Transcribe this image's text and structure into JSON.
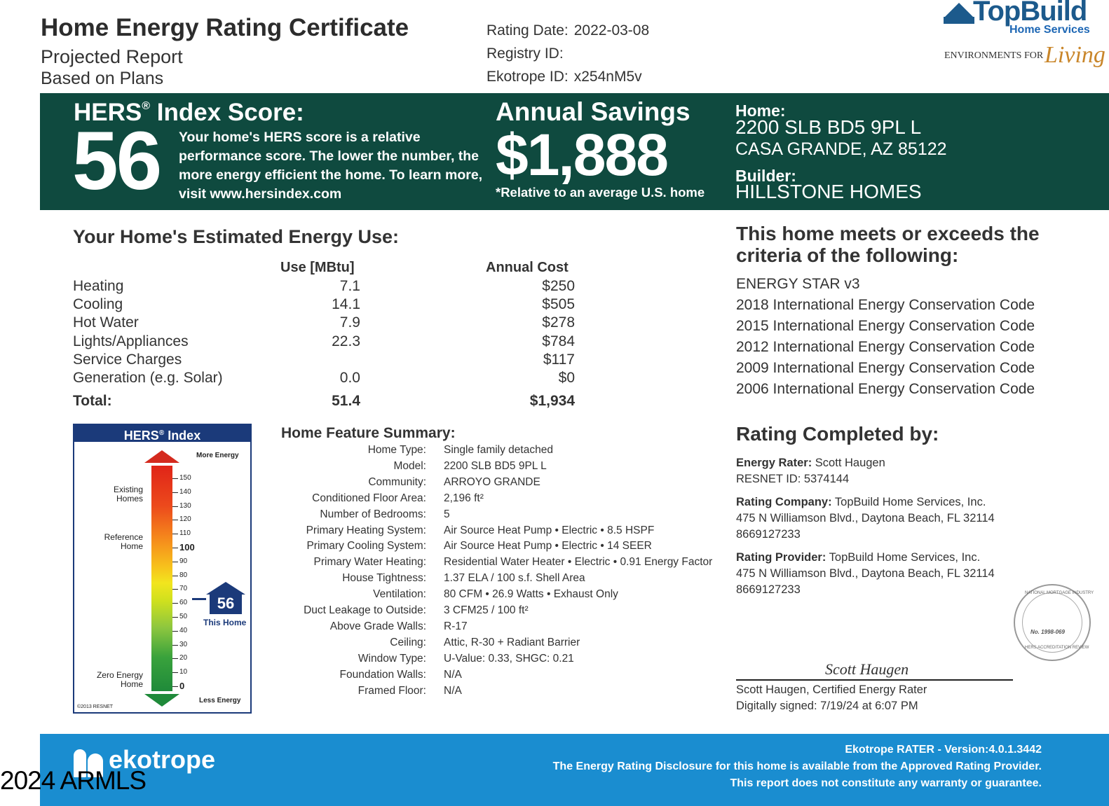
{
  "header": {
    "title": "Home Energy Rating Certificate",
    "subtitle1": "Projected Report",
    "subtitle2": "Based on Plans",
    "rating_date_label": "Rating Date:",
    "rating_date": "2022-03-08",
    "registry_label": "Registry ID:",
    "registry_id": "",
    "ekotrope_label": "Ekotrope ID:",
    "ekotrope_id": "x254nM5v"
  },
  "logo": {
    "name": "TopBuild",
    "sub": "Home Services",
    "tagline": "ENVIRONMENTS FOR",
    "tagline_script": "Living"
  },
  "banner": {
    "hers_title": "HERS",
    "hers_reg": "®",
    "hers_title_rest": " Index Score:",
    "score": "56",
    "desc": "Your home's HERS score is a relative performance score. The lower the number, the more energy efficient the home. To learn more, visit www.hersindex.com",
    "savings_title": "Annual Savings",
    "savings_amount": "$1,888",
    "savings_note": "*Relative to an average U.S. home",
    "home_label": "Home:",
    "home_line1": "2200 SLB BD5 9PL L",
    "home_line2": "CASA GRANDE, AZ 85122",
    "builder_label": "Builder:",
    "builder": "HILLSTONE HOMES"
  },
  "energy_use": {
    "title": "Your Home's Estimated Energy Use:",
    "col_use": "Use [MBtu]",
    "col_cost": "Annual Cost",
    "rows": [
      {
        "label": "Heating",
        "use": "7.1",
        "cost": "$250"
      },
      {
        "label": "Cooling",
        "use": "14.1",
        "cost": "$505"
      },
      {
        "label": "Hot Water",
        "use": "7.9",
        "cost": "$278"
      },
      {
        "label": "Lights/Appliances",
        "use": "22.3",
        "cost": "$784"
      },
      {
        "label": "Service Charges",
        "use": "",
        "cost": "$117"
      },
      {
        "label": "Generation (e.g. Solar)",
        "use": "0.0",
        "cost": "$0"
      }
    ],
    "total_label": "Total:",
    "total_use": "51.4",
    "total_cost": "$1,934"
  },
  "criteria": {
    "title": "This home meets or exceeds the criteria of the following:",
    "items": [
      "ENERGY STAR v3",
      "2018 International Energy Conservation Code",
      "2015 International Energy Conservation Code",
      "2012 International Energy Conservation Code",
      "2009 International Energy Conservation Code",
      "2006 International Energy Conservation Code"
    ]
  },
  "hers_chart": {
    "title": "HERS",
    "title_reg": "®",
    "title_rest": " Index",
    "more_energy": "More Energy",
    "less_energy": "Less Energy",
    "existing_homes": "Existing Homes",
    "reference_home": "Reference Home",
    "zero_energy_home": "Zero Energy Home",
    "ticks": [
      "150",
      "140",
      "130",
      "120",
      "110",
      "100",
      "90",
      "80",
      "70",
      "60",
      "50",
      "40",
      "30",
      "20",
      "10",
      "0"
    ],
    "this_home_value": "56",
    "this_home_label": "This Home",
    "copyright": "©2013 RESNET"
  },
  "features": {
    "title": "Home Feature Summary:",
    "rows": [
      {
        "k": "Home Type:",
        "v": "Single family detached"
      },
      {
        "k": "Model:",
        "v": "2200 SLB BD5 9PL L"
      },
      {
        "k": "Community:",
        "v": "ARROYO GRANDE"
      },
      {
        "k": "Conditioned Floor Area:",
        "v": "2,196 ft²"
      },
      {
        "k": "Number of Bedrooms:",
        "v": "5"
      },
      {
        "k": "Primary Heating System:",
        "v": "Air Source Heat Pump • Electric • 8.5 HSPF"
      },
      {
        "k": "Primary Cooling System:",
        "v": "Air Source Heat Pump • Electric • 14 SEER"
      },
      {
        "k": "Primary Water Heating:",
        "v": "Residential Water Heater • Electric • 0.91 Energy Factor"
      },
      {
        "k": "House Tightness:",
        "v": "1.37 ELA / 100 s.f. Shell Area"
      },
      {
        "k": "Ventilation:",
        "v": "80 CFM • 26.9 Watts • Exhaust Only"
      },
      {
        "k": "Duct Leakage to Outside:",
        "v": "3 CFM25 / 100 ft²"
      },
      {
        "k": "Above Grade Walls:",
        "v": "R-17"
      },
      {
        "k": "Ceiling:",
        "v": "Attic, R-30 + Radiant Barrier"
      },
      {
        "k": "Window Type:",
        "v": "U-Value: 0.33, SHGC: 0.21"
      },
      {
        "k": "Foundation Walls:",
        "v": "N/A"
      },
      {
        "k": "Framed Floor:",
        "v": "N/A"
      }
    ]
  },
  "rating": {
    "title": "Rating Completed by:",
    "rater_label": "Energy Rater:",
    "rater": "Scott Haugen",
    "resnet_id": "RESNET ID: 5374144",
    "company_label": "Rating Company:",
    "company": "TopBuild Home Services, Inc.",
    "company_addr": "475 N Williamson Blvd., Daytona Beach, FL 32114",
    "company_phone": "8669127233",
    "provider_label": "Rating Provider:",
    "provider": "TopBuild Home Services, Inc.",
    "provider_addr": "475 N Williamson Blvd., Daytona Beach, FL 32114",
    "provider_phone": "8669127233",
    "signature": "Scott Haugen",
    "signed_by": "Scott Haugen, Certified Energy Rater",
    "signed_at": "Digitally signed: 7/19/24 at 6:07 PM",
    "seal_ring": "NATIONAL MORTGAGE INDUSTRY",
    "seal_ring2": "HERS ACCREDITATION REVIEW",
    "seal_no": "No. 1998-069"
  },
  "footer": {
    "brand": "ekotrope",
    "version": "Ekotrope RATER - Version:4.0.1.3442",
    "disclosure": "The Energy Rating Disclosure for this home is available from the Approved Rating Provider.",
    "warranty": "This report does not constitute any warranty or guarantee."
  },
  "watermark": "2024 ARMLS",
  "colors": {
    "banner_green": "#0f4a3f",
    "footer_blue": "#1a8dd0",
    "hers_navy": "#1b3a7a",
    "topbuild_blue": "#1c5a8c"
  }
}
